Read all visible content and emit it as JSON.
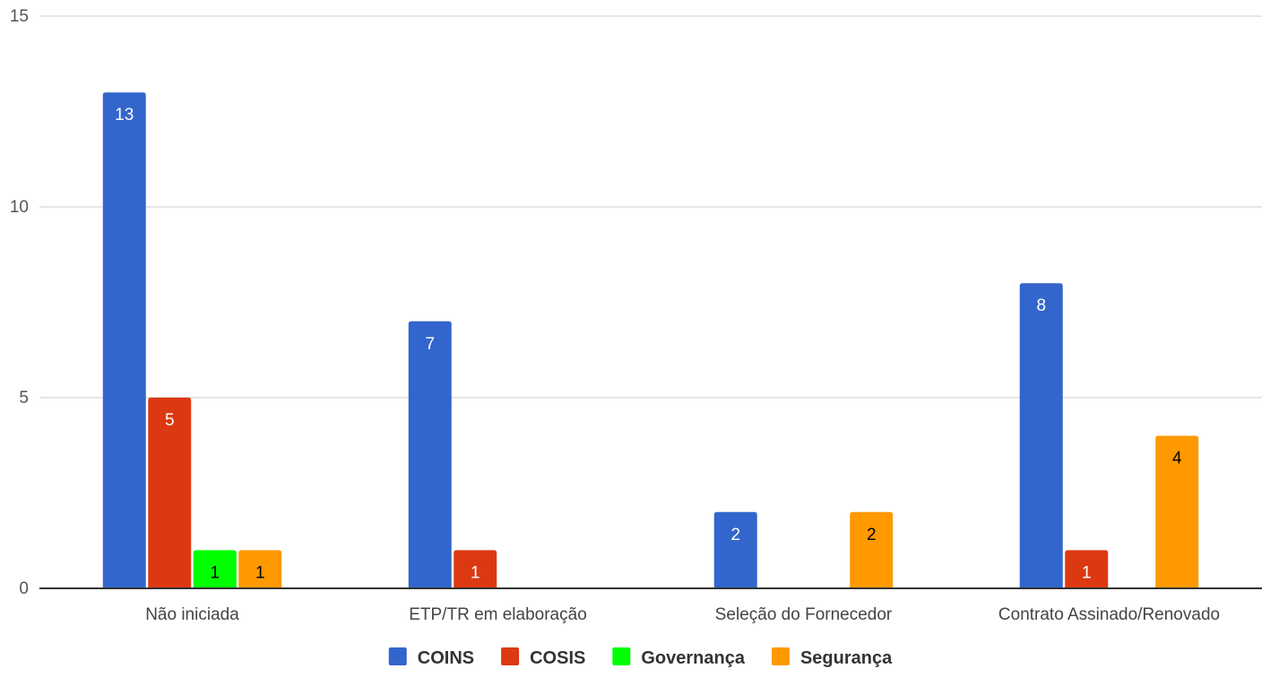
{
  "chart_data": {
    "type": "bar",
    "title": "",
    "xlabel": "",
    "ylabel": "",
    "categories": [
      "Não iniciada",
      "ETP/TR em elaboração",
      "Seleção do Fornecedor",
      "Contrato Assinado/Renovado"
    ],
    "series": [
      {
        "name": "COINS",
        "color": "#3366cc",
        "label_color": "#ffffff",
        "values": [
          13,
          7,
          2,
          8
        ]
      },
      {
        "name": "COSIS",
        "color": "#dc3912",
        "label_color": "#ffffff",
        "values": [
          5,
          1,
          null,
          1
        ]
      },
      {
        "name": "Governança",
        "color": "#00ff00",
        "label_color": "#000000",
        "values": [
          1,
          null,
          null,
          null
        ]
      },
      {
        "name": "Segurança",
        "color": "#ff9900",
        "label_color": "#000000",
        "values": [
          1,
          null,
          2,
          4
        ]
      }
    ],
    "ylim": [
      0,
      15
    ],
    "yticks": [
      0,
      5,
      10,
      15
    ],
    "grid": true,
    "legend": "bottom"
  }
}
